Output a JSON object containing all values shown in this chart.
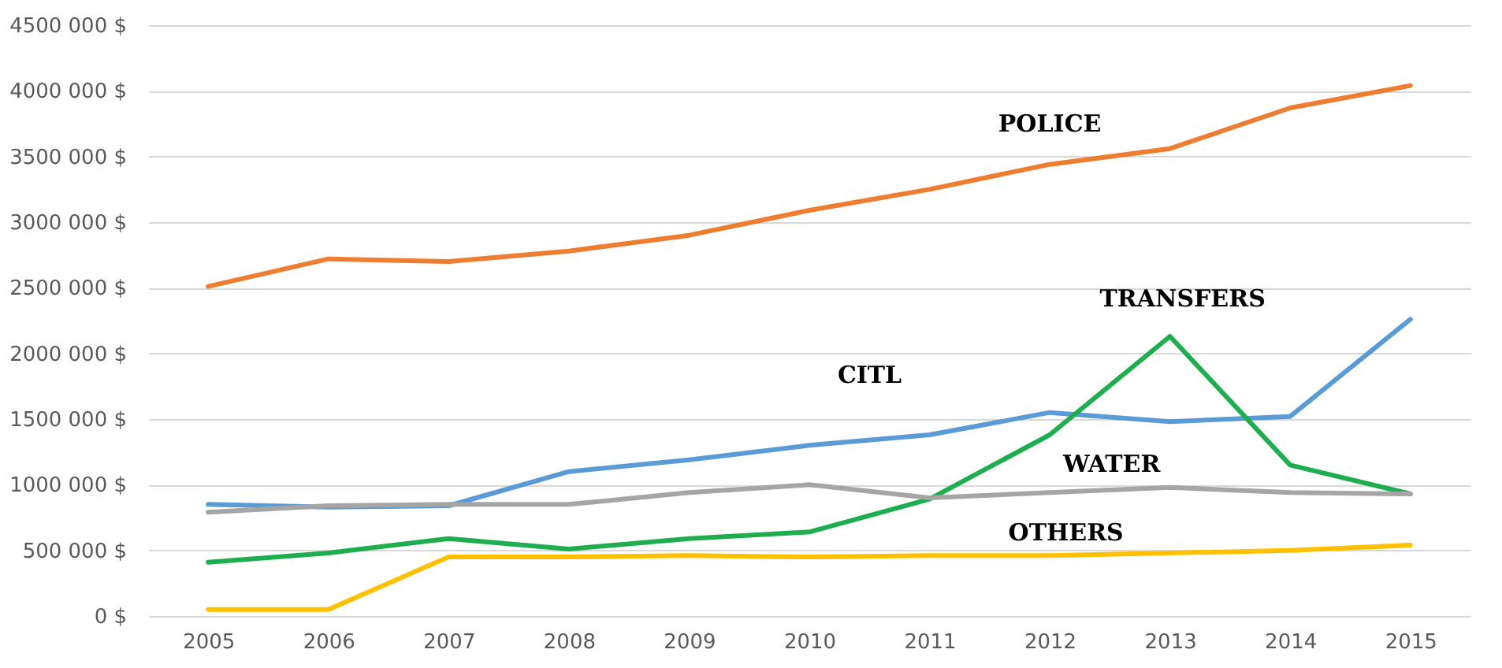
{
  "chart_data": {
    "type": "line",
    "categories": [
      "2005",
      "2006",
      "2007",
      "2008",
      "2009",
      "2010",
      "2011",
      "2012",
      "2013",
      "2014",
      "2015"
    ],
    "series": [
      {
        "name": "POLICE",
        "color": "#ed7d31",
        "values": [
          2510000,
          2720000,
          2700000,
          2780000,
          2900000,
          3090000,
          3250000,
          3440000,
          3560000,
          3870000,
          4040000
        ]
      },
      {
        "name": "CITL",
        "color": "#5b9bd5",
        "values": [
          850000,
          830000,
          840000,
          1100000,
          1190000,
          1300000,
          1380000,
          1550000,
          1480000,
          1520000,
          2260000
        ]
      },
      {
        "name": "TRANSFERS",
        "color": "#1eae50",
        "values": [
          410000,
          480000,
          590000,
          510000,
          590000,
          640000,
          890000,
          1380000,
          2130000,
          1150000,
          930000
        ]
      },
      {
        "name": "WATER",
        "color": "#a5a5a5",
        "values": [
          790000,
          840000,
          850000,
          850000,
          940000,
          1000000,
          900000,
          940000,
          980000,
          940000,
          930000
        ]
      },
      {
        "name": "OTHERS",
        "color": "#ffc000",
        "values": [
          50000,
          50000,
          450000,
          450000,
          460000,
          450000,
          460000,
          460000,
          480000,
          500000,
          540000
        ]
      }
    ],
    "ylim": [
      0,
      4500000
    ],
    "yticks": [
      {
        "value": 0,
        "label": "0 $"
      },
      {
        "value": 500000,
        "label": "500 000 $"
      },
      {
        "value": 1000000,
        "label": "1000 000 $"
      },
      {
        "value": 1500000,
        "label": "1500 000 $"
      },
      {
        "value": 2000000,
        "label": "2000 000 $"
      },
      {
        "value": 2500000,
        "label": "2500 000 $"
      },
      {
        "value": 3000000,
        "label": "3000 000 $"
      },
      {
        "value": 3500000,
        "label": "3500 000 $"
      },
      {
        "value": 4000000,
        "label": "4000 000 $"
      },
      {
        "value": 4500000,
        "label": "4500 000 $"
      }
    ],
    "grid": "y",
    "marker": "none",
    "line_style": "solid"
  }
}
